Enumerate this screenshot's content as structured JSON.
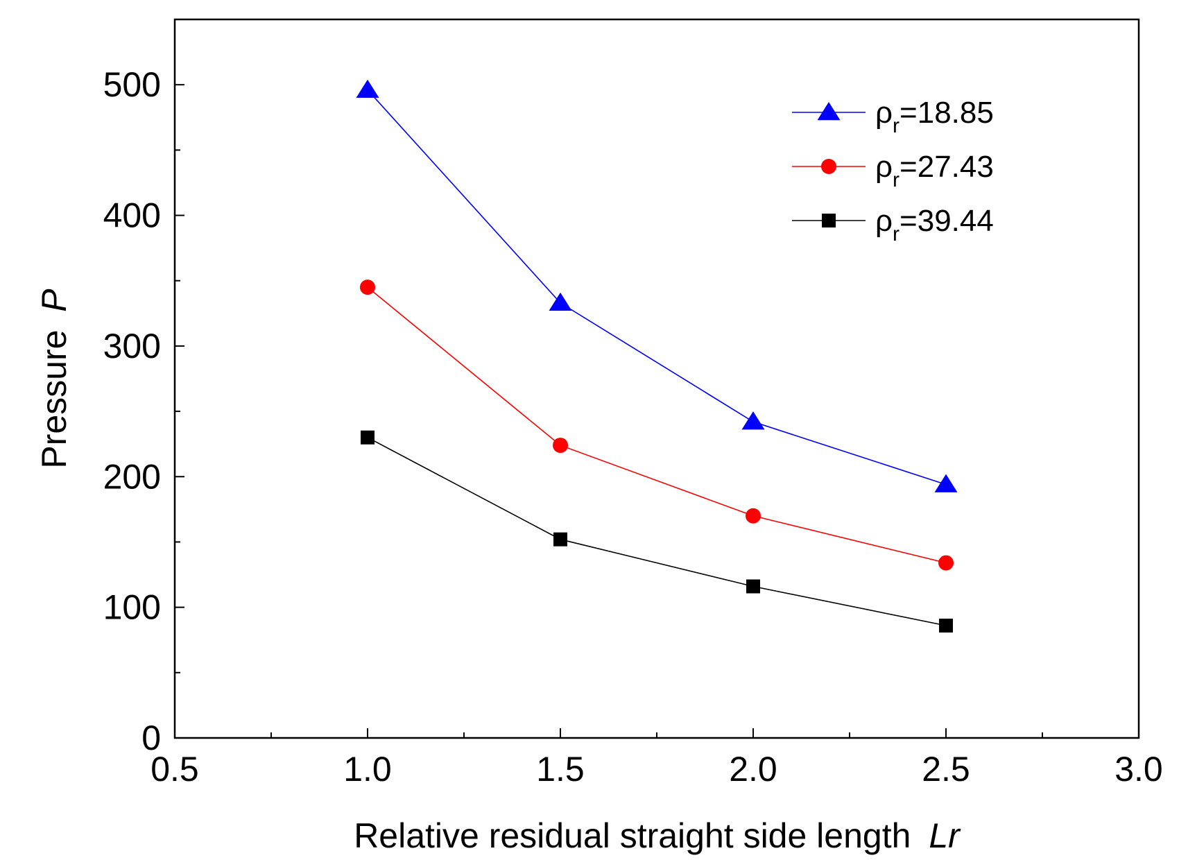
{
  "chart_data": {
    "type": "line",
    "title": "",
    "xlabel": "Relative residual straight side length",
    "xlabel_italic": "Lr",
    "ylabel": "Pressure",
    "ylabel_italic": "P",
    "xlim": [
      0.5,
      3.0
    ],
    "ylim": [
      0,
      550
    ],
    "xticks": [
      0.5,
      1.0,
      1.5,
      2.0,
      2.5,
      3.0
    ],
    "xtick_labels": [
      "0.5",
      "1.0",
      "1.5",
      "2.0",
      "2.5",
      "3.0"
    ],
    "yticks": [
      0,
      100,
      200,
      300,
      400,
      500
    ],
    "ytick_labels": [
      "0",
      "100",
      "200",
      "300",
      "400",
      "500"
    ],
    "x_minor_ticks": [
      0.75,
      1.25,
      1.75,
      2.25,
      2.75
    ],
    "y_minor_ticks": [
      50,
      150,
      250,
      350,
      450
    ],
    "grid": false,
    "legend_position": "top-right",
    "x": [
      1.0,
      1.5,
      2.0,
      2.5
    ],
    "series": [
      {
        "name_symbol": "ρ",
        "name_sub": "r",
        "name_value": "=18.85",
        "marker": "triangle",
        "color": "#0000ff",
        "values": [
          496,
          333,
          242,
          194
        ]
      },
      {
        "name_symbol": "ρ",
        "name_sub": "r",
        "name_value": "=27.43",
        "marker": "circle",
        "color": "#ff0000",
        "values": [
          345,
          224,
          170,
          134
        ]
      },
      {
        "name_symbol": "ρ",
        "name_sub": "r",
        "name_value": "=39.44",
        "marker": "square",
        "color": "#000000",
        "values": [
          230,
          152,
          116,
          86
        ]
      }
    ]
  }
}
